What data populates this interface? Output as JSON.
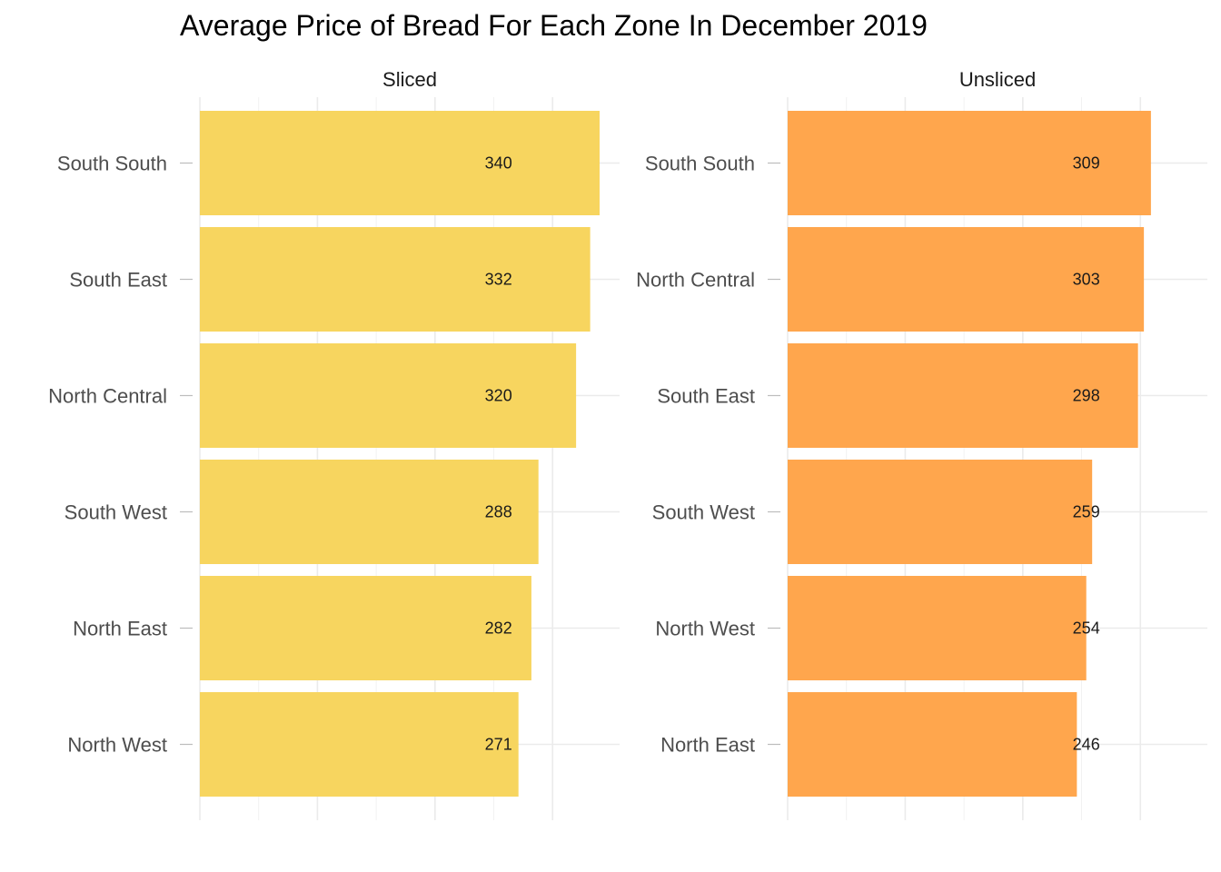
{
  "chart_data": {
    "type": "bar",
    "orientation": "horizontal",
    "title": "Average Price of Bread For Each Zone In December 2019",
    "xlabel": "",
    "ylabel": "",
    "xlim": [
      0,
      350
    ],
    "grid": true,
    "legend": "none",
    "facets": [
      {
        "name": "Sliced",
        "color": "#F7D55F",
        "categories": [
          "South South",
          "South East",
          "North Central",
          "South West",
          "North East",
          "North West"
        ],
        "values": [
          340,
          332,
          320,
          288,
          282,
          271
        ],
        "labels": [
          "340",
          "332",
          "320",
          "288",
          "282",
          "271"
        ]
      },
      {
        "name": "Unsliced",
        "color": "#FFA64D",
        "categories": [
          "South South",
          "North Central",
          "South East",
          "South West",
          "North West",
          "North East"
        ],
        "values": [
          309,
          303,
          298,
          259,
          254,
          246
        ],
        "labels": [
          "309",
          "303",
          "298",
          "259",
          "254",
          "246"
        ]
      }
    ]
  }
}
